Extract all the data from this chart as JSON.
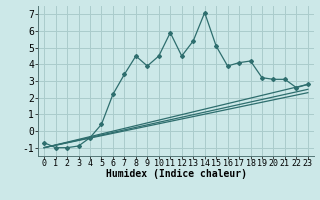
{
  "background_color": "#cce8e8",
  "line_color": "#2e6e6e",
  "grid_color": "#aacccc",
  "xlabel": "Humidex (Indice chaleur)",
  "xlabel_fontsize": 7,
  "tick_fontsize": 6,
  "xlim": [
    -0.5,
    23.5
  ],
  "ylim": [
    -1.5,
    7.5
  ],
  "yticks": [
    -1,
    0,
    1,
    2,
    3,
    4,
    5,
    6,
    7
  ],
  "xticks": [
    0,
    1,
    2,
    3,
    4,
    5,
    6,
    7,
    8,
    9,
    10,
    11,
    12,
    13,
    14,
    15,
    16,
    17,
    18,
    19,
    20,
    21,
    22,
    23
  ],
  "main_x": [
    0,
    1,
    2,
    3,
    4,
    5,
    6,
    7,
    8,
    9,
    10,
    11,
    12,
    13,
    14,
    15,
    16,
    17,
    18,
    19,
    20,
    21,
    22,
    23
  ],
  "main_y": [
    -0.7,
    -1.0,
    -1.0,
    -0.9,
    -0.4,
    0.4,
    2.2,
    3.4,
    4.5,
    3.9,
    4.5,
    5.9,
    4.5,
    5.4,
    7.1,
    5.1,
    3.9,
    4.1,
    4.2,
    3.2,
    3.1,
    3.1,
    2.6,
    2.8
  ],
  "line2_x": [
    0,
    23
  ],
  "line2_y": [
    -1.0,
    2.8
  ],
  "line3_x": [
    0,
    23
  ],
  "line3_y": [
    -1.0,
    2.5
  ],
  "line4_x": [
    0,
    23
  ],
  "line4_y": [
    -1.0,
    2.3
  ]
}
